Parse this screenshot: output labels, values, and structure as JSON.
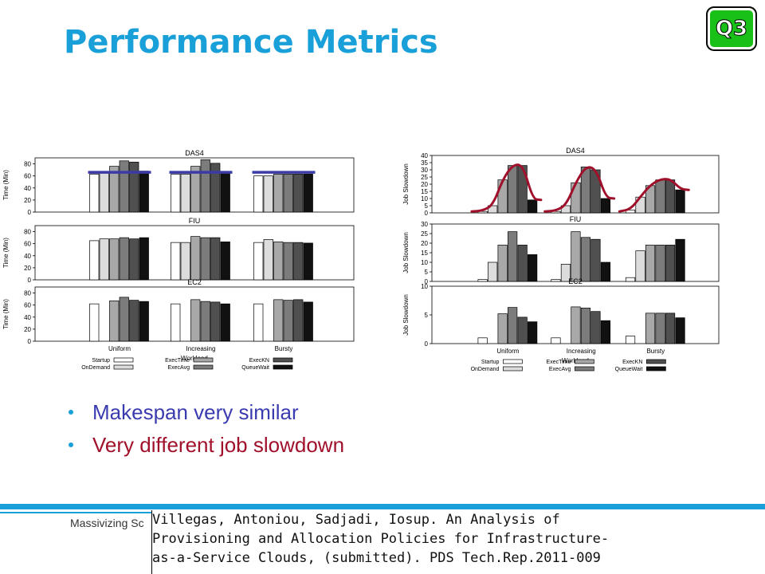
{
  "slide": {
    "title": "Performance Metrics",
    "badge": "Q3",
    "bullets": [
      "Makespan very similar",
      "Very different job slowdown"
    ],
    "footer": "Massivizing Sc",
    "citation": [
      "Villegas, Antoniou, Sadjadi, Iosup. An Analysis of",
      "  Provisioning and Allocation Policies for Infrastructure-",
      "  as-a-Service Clouds, (submitted). PDS Tech.Rep.2011-009"
    ]
  },
  "colors": {
    "title": "#1aa0d8",
    "bullet1": "#3b3bb0",
    "bullet2": "#a0102a",
    "makespan_line": "#3b3ba8",
    "slowdown_curve": "#a0102a",
    "series": [
      "#ffffff",
      "#dcdcdc",
      "#a8a8a8",
      "#7c7c7c",
      "#505050",
      "#111111"
    ]
  },
  "chart_data": [
    {
      "type": "bar",
      "xlabel": "Workload",
      "ylabel": "Time (Min)",
      "categories": [
        "Uniform",
        "Increasing",
        "Bursty"
      ],
      "legend": [
        "Startup",
        "OnDemand",
        "ExecTime",
        "ExecAvg",
        "ExecKN",
        "QueueWait"
      ],
      "panels": [
        {
          "title": "DAS4",
          "ylim": [
            0,
            90
          ],
          "yticks": [
            0,
            20,
            40,
            60,
            80
          ],
          "series": [
            [
              63,
              66,
              76,
              85,
              83,
              68
            ],
            [
              63,
              63,
              76,
              87,
              81,
              66
            ],
            [
              60,
              60,
              63,
              63,
              63,
              63
            ]
          ],
          "markers": [
            66,
            66,
            66
          ]
        },
        {
          "title": "FIU",
          "ylim": [
            0,
            90
          ],
          "yticks": [
            0,
            20,
            40,
            60,
            80
          ],
          "series": [
            [
              65,
              68,
              68,
              70,
              68,
              70
            ],
            [
              62,
              62,
              72,
              70,
              70,
              63
            ],
            [
              62,
              67,
              63,
              62,
              62,
              61
            ]
          ]
        },
        {
          "title": "EC2",
          "ylim": [
            0,
            90
          ],
          "yticks": [
            0,
            20,
            40,
            60,
            80
          ],
          "series": [
            [
              62,
              null,
              67,
              73,
              68,
              66
            ],
            [
              62,
              null,
              69,
              66,
              65,
              62
            ],
            [
              62,
              null,
              69,
              68,
              69,
              65
            ]
          ]
        }
      ]
    },
    {
      "type": "bar",
      "xlabel": "Workload",
      "ylabel": "Job Slowdown",
      "categories": [
        "Uniform",
        "Increasing",
        "Bursty"
      ],
      "legend": [
        "Startup",
        "OnDemand",
        "ExecTime",
        "ExecAvg",
        "ExecKN",
        "QueueWait"
      ],
      "panels": [
        {
          "title": "DAS4",
          "ylim": [
            0,
            40
          ],
          "yticks": [
            0,
            5,
            10,
            15,
            20,
            25,
            30,
            35,
            40
          ],
          "series": [
            [
              1,
              5,
              23,
              33,
              33,
              9
            ],
            [
              1,
              5,
              21,
              32,
              30,
              10
            ],
            [
              2,
              11,
              19,
              23,
              23,
              16
            ]
          ]
        },
        {
          "title": "FIU",
          "ylim": [
            0,
            30
          ],
          "yticks": [
            0,
            5,
            10,
            15,
            20,
            25,
            30
          ],
          "series": [
            [
              1,
              10,
              19,
              26,
              19,
              14
            ],
            [
              1,
              9,
              26,
              23,
              22,
              10
            ],
            [
              2,
              16,
              19,
              19,
              19,
              22
            ]
          ]
        },
        {
          "title": "EC2",
          "ylim": [
            0,
            10
          ],
          "yticks": [
            0,
            5,
            10
          ],
          "series": [
            [
              1,
              null,
              5.2,
              6.3,
              4.6,
              3.8
            ],
            [
              1,
              null,
              6.4,
              6.2,
              5.6,
              4.0
            ],
            [
              1.3,
              null,
              5.3,
              5.3,
              5.3,
              4.5
            ]
          ]
        }
      ]
    }
  ]
}
